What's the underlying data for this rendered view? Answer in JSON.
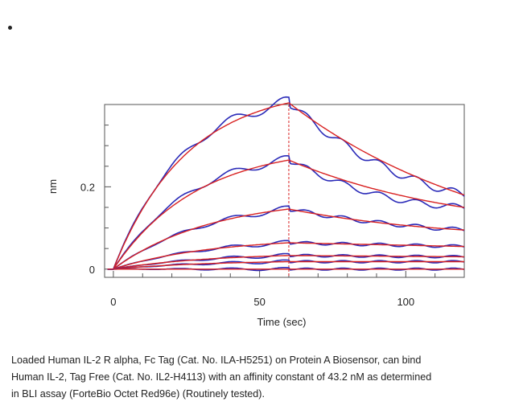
{
  "chart_data": {
    "type": "line",
    "xlabel": "Time (sec)",
    "ylabel": "nm",
    "xlim": [
      -3,
      120
    ],
    "ylim": [
      -0.02,
      0.4
    ],
    "xticks": [
      0,
      50,
      100
    ],
    "yticks": [
      0,
      0.2
    ],
    "dissociation_start": 60,
    "colors": {
      "measured": "#2a2ab8",
      "fit": "#d82020",
      "marker": "#d82020",
      "axis": "#555555"
    },
    "series": [
      {
        "peak": 0.404,
        "k_on": 0.04,
        "k_off": 0.0136,
        "end": 0.18
      },
      {
        "peak": 0.265,
        "k_on": 0.035,
        "k_off": 0.0132,
        "end": 0.15
      },
      {
        "peak": 0.146,
        "k_on": 0.03,
        "k_off": 0.0123,
        "end": 0.095
      },
      {
        "peak": 0.064,
        "k_on": 0.03,
        "k_off": 0.0,
        "end": 0.055
      },
      {
        "peak": 0.033,
        "k_on": 0.03,
        "k_off": 0.0,
        "end": 0.03
      },
      {
        "peak": 0.018,
        "k_on": 0.03,
        "k_off": 0.0,
        "end": 0.018
      },
      {
        "peak": 0.0,
        "k_on": 0.03,
        "k_off": 0.0,
        "end": 0.0
      }
    ]
  },
  "caption": {
    "line1": "Loaded Human IL-2 R alpha, Fc Tag (Cat. No. ILA-H5251) on Protein A Biosensor, can bind",
    "line2": "Human IL-2, Tag Free (Cat. No. IL2-H4113) with an affinity constant of 43.2 nM as determined",
    "line3": "in BLI assay (ForteBio Octet Red96e) (Routinely tested)."
  }
}
